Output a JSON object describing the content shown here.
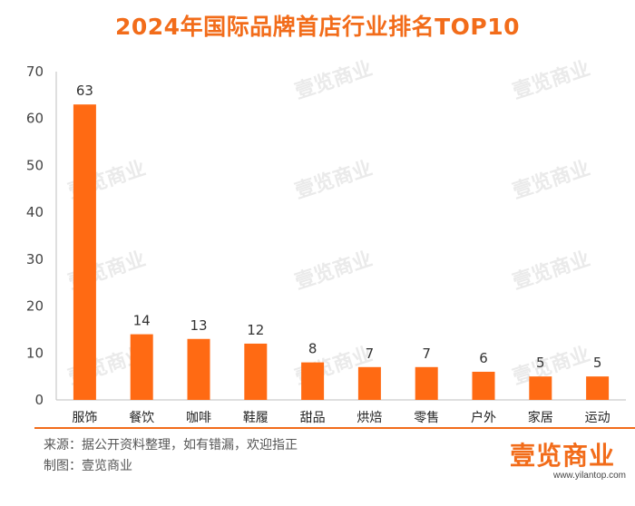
{
  "page": {
    "title": "2024年国际品牌首店行业排名TOP10",
    "source": "来源：据公开资料整理，如有错漏，欢迎指正",
    "maker": "制图：壹览商业",
    "logo": "壹览商业",
    "logo_url": "www.yilantop.com",
    "watermark": "壹览商业"
  },
  "colors": {
    "accent": "#f26c1a",
    "bar": "#ff6a13"
  },
  "chart_data": {
    "type": "bar",
    "title": "2024年国际品牌首店行业排名TOP10",
    "xlabel": "",
    "ylabel": "",
    "categories": [
      "服饰",
      "餐饮",
      "咖啡",
      "鞋履",
      "甜品",
      "烘焙",
      "零售",
      "户外",
      "家居",
      "运动"
    ],
    "values": [
      63,
      14,
      13,
      12,
      8,
      7,
      7,
      6,
      5,
      5
    ],
    "ylim": [
      0,
      70
    ],
    "yticks": [
      0,
      10,
      20,
      30,
      40,
      50,
      60,
      70
    ],
    "grid": false
  }
}
